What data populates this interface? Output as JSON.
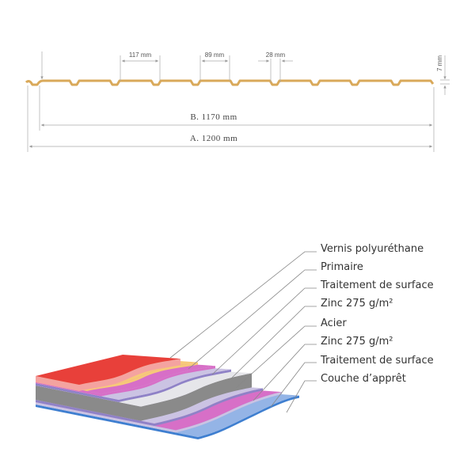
{
  "profile": {
    "color": "#d9a95a",
    "dimensions": {
      "rib_pitch": "117 mm",
      "flat_width": "89 mm",
      "groove_width": "28 mm",
      "height": "7 mm",
      "width_b": "B. 1170 mm",
      "width_a": "A. 1200 mm"
    }
  },
  "layers": {
    "labels": [
      "Vernis polyuréthane",
      "Primaire",
      "Traitement de surface",
      "Zinc 275 g/m²",
      "Acier",
      "Zinc 275 g/m²",
      "Traitement de surface",
      "Couche d’apprêt"
    ],
    "colors": {
      "vernis": "#e8403a",
      "vernis_edge": "#f4a3a0",
      "primaire": "#f7c979",
      "traitement": "#d76fc7",
      "zinc": "#8f82c7",
      "acier": "#e6e6ea",
      "acier_edge": "#8a8a8a",
      "zinc_base": "#cbc3e3",
      "apprêt": "#94b4e6",
      "apprêt_edge": "#3f7fd0"
    }
  }
}
